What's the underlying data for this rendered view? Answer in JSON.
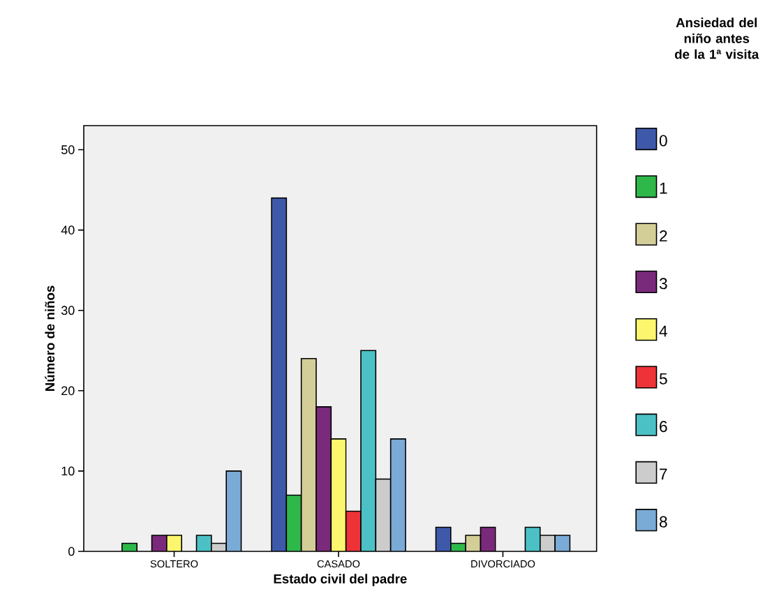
{
  "chart_data": {
    "type": "bar",
    "xlabel": "Estado civil del padre",
    "ylabel": "Número de niños",
    "legend_title": "Ansiedad del niño antes de la 1ª visita",
    "categories": [
      "SOLTERO",
      "CASADO",
      "DIVORCIADO"
    ],
    "series": [
      {
        "name": "0",
        "color": "#3f59aa",
        "values": [
          null,
          44,
          3
        ]
      },
      {
        "name": "1",
        "color": "#2fb84a",
        "values": [
          1,
          7,
          1
        ]
      },
      {
        "name": "2",
        "color": "#d3ce97",
        "values": [
          null,
          24,
          2
        ]
      },
      {
        "name": "3",
        "color": "#7a2a7a",
        "values": [
          2,
          18,
          3
        ]
      },
      {
        "name": "4",
        "color": "#fbf66d",
        "values": [
          2,
          14,
          null
        ]
      },
      {
        "name": "5",
        "color": "#ee3338",
        "values": [
          null,
          5,
          null
        ]
      },
      {
        "name": "6",
        "color": "#4cc1c5",
        "values": [
          2,
          25,
          3
        ]
      },
      {
        "name": "7",
        "color": "#cccccc",
        "values": [
          1,
          9,
          2
        ]
      },
      {
        "name": "8",
        "color": "#7aaad6",
        "values": [
          10,
          14,
          2
        ]
      }
    ],
    "ylim": [
      0,
      53
    ],
    "yticks": [
      0,
      10,
      20,
      30,
      40,
      50
    ],
    "grid": false,
    "legend": "right"
  }
}
